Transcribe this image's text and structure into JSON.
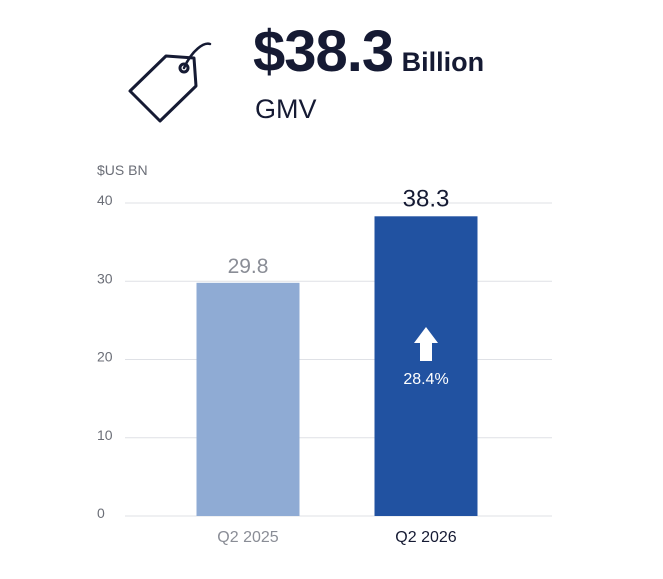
{
  "header": {
    "value": "$38.3",
    "unit": "Billion",
    "metric": "GMV",
    "icon": "price-tag-icon"
  },
  "chart_data": {
    "type": "bar",
    "unit_label": "$US BN",
    "categories": [
      "Q2 2025",
      "Q2 2026"
    ],
    "values": [
      29.8,
      38.3
    ],
    "value_labels": [
      "29.8",
      "38.3"
    ],
    "ylim": [
      0,
      40
    ],
    "yticks": [
      0,
      10,
      20,
      30,
      40
    ],
    "grid": true,
    "colors": [
      "#8fabd4",
      "#2152a1"
    ],
    "growth": {
      "label": "28.4%",
      "icon": "up-arrow-icon",
      "category": "Q2 2026"
    }
  },
  "colors": {
    "text_dark": "#151a33",
    "text_muted": "#8a8d96",
    "grid": "#dfe1e6"
  }
}
